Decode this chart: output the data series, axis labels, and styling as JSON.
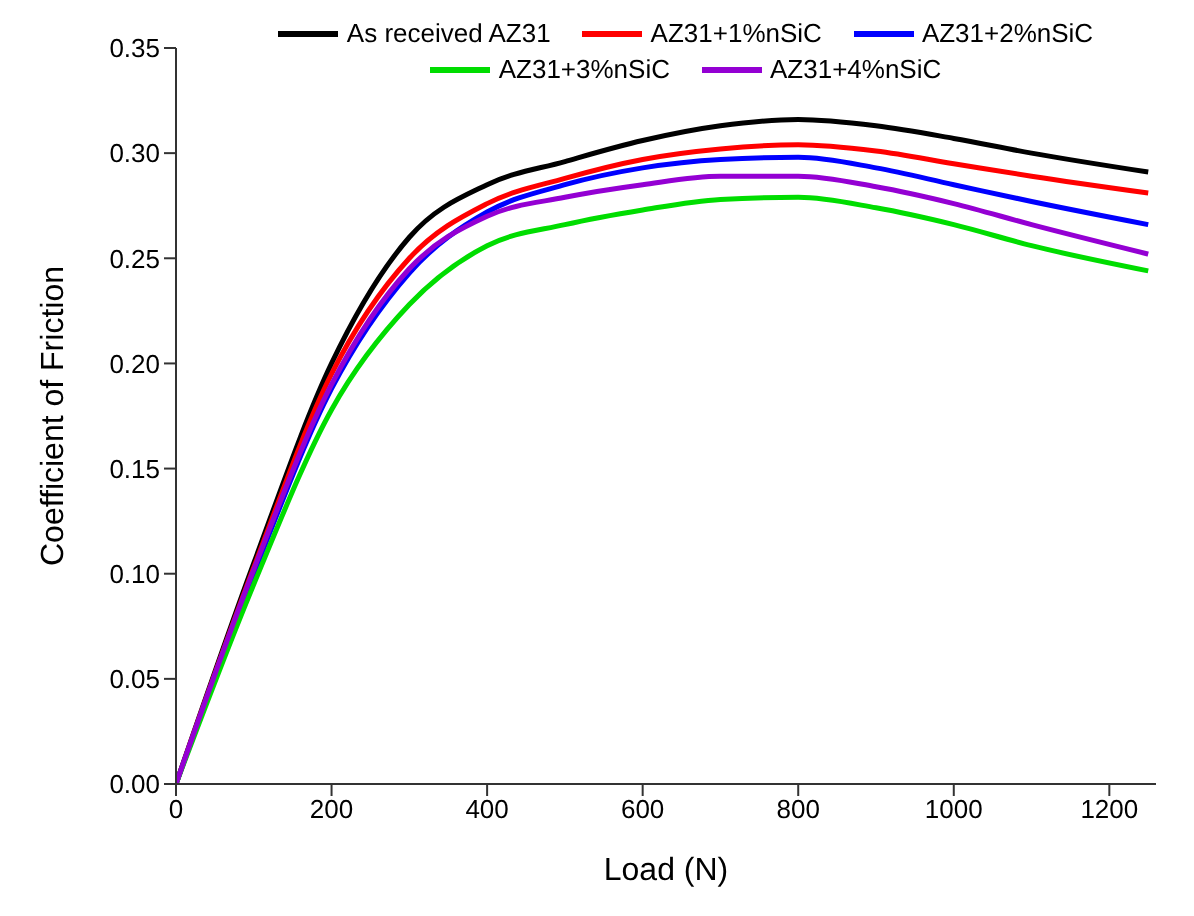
{
  "chart_data": {
    "type": "line",
    "xlabel": "Load (N)",
    "ylabel": "Coefficient of Friction",
    "x": [
      0,
      100,
      200,
      300,
      400,
      500,
      600,
      700,
      800,
      900,
      1000,
      1100,
      1250
    ],
    "series": [
      {
        "name": "As received AZ31",
        "color": "#000000",
        "values": [
          0,
          0.105,
          0.2,
          0.26,
          0.285,
          0.296,
          0.306,
          0.313,
          0.316,
          0.313,
          0.307,
          0.3,
          0.291
        ]
      },
      {
        "name": "AZ31+1%nSiC",
        "color": "#ff0000",
        "values": [
          0,
          0.103,
          0.195,
          0.25,
          0.276,
          0.288,
          0.297,
          0.302,
          0.304,
          0.301,
          0.295,
          0.289,
          0.281
        ]
      },
      {
        "name": "AZ31+2%nSiC",
        "color": "#0000ff",
        "values": [
          0,
          0.1,
          0.188,
          0.243,
          0.272,
          0.285,
          0.293,
          0.297,
          0.298,
          0.293,
          0.285,
          0.277,
          0.266
        ]
      },
      {
        "name": "AZ31+3%nSiC",
        "color": "#00dd00",
        "values": [
          0,
          0.095,
          0.178,
          0.228,
          0.256,
          0.266,
          0.273,
          0.278,
          0.279,
          0.274,
          0.266,
          0.256,
          0.244
        ]
      },
      {
        "name": "AZ31+4%nSiC",
        "color": "#9400d3",
        "values": [
          0,
          0.102,
          0.19,
          0.245,
          0.27,
          0.279,
          0.285,
          0.289,
          0.289,
          0.284,
          0.276,
          0.266,
          0.252
        ]
      }
    ],
    "xlim": [
      0,
      1260
    ],
    "xticks": [
      0,
      200,
      400,
      600,
      800,
      1000,
      1200
    ],
    "ylim": [
      0,
      0.35
    ],
    "yticks": [
      {
        "value": 0,
        "label": "0.00"
      },
      {
        "value": 0.05,
        "label": "0.05"
      },
      {
        "value": 0.1,
        "label": "0.10"
      },
      {
        "value": 0.15,
        "label": "0.15"
      },
      {
        "value": 0.2,
        "label": "0.20"
      },
      {
        "value": 0.25,
        "label": "0.25"
      },
      {
        "value": 0.3,
        "label": "0.30"
      },
      {
        "value": 0.35,
        "label": "0.35"
      }
    ],
    "grid": false,
    "legend": "top",
    "marker": "none",
    "line_style": "solid"
  }
}
